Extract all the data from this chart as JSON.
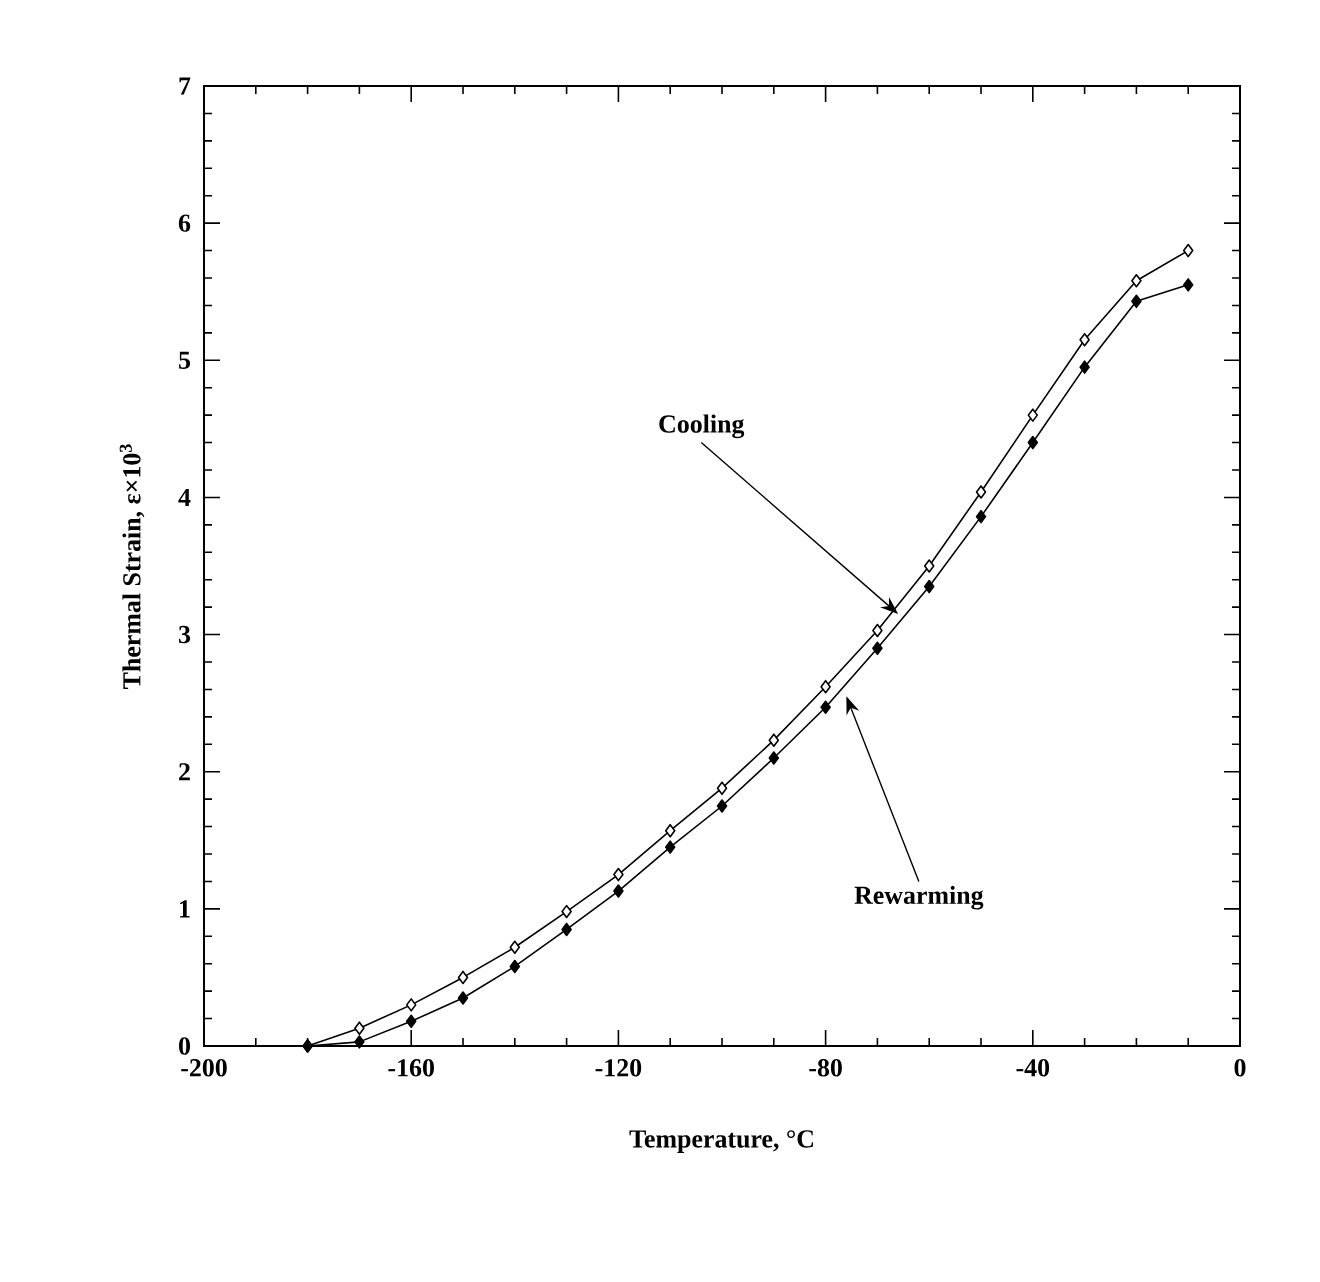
{
  "chart_data": {
    "type": "line",
    "xlabel": "Temperature, °C",
    "ylabel": "Thermal Strain,  ε×10$^{3}$",
    "x": [
      -180,
      -170,
      -160,
      -150,
      -140,
      -130,
      -120,
      -110,
      -100,
      -90,
      -80,
      -70,
      -60,
      -50,
      -40,
      -30,
      -20,
      -10
    ],
    "series": [
      {
        "color": "#000000",
        "values": [
          0,
          0.13,
          0.3,
          0.5,
          0.72,
          0.98,
          1.25,
          1.57,
          1.88,
          2.23,
          2.62,
          3.03,
          3.5,
          4.04,
          4.6,
          5.15,
          5.58,
          5.8
        ]
      },
      {
        "color": "#000000",
        "values": [
          0,
          0.03,
          0.18,
          0.35,
          0.58,
          0.85,
          1.13,
          1.45,
          1.75,
          2.1,
          2.47,
          2.9,
          3.35,
          3.86,
          4.4,
          4.95,
          5.43,
          5.55
        ]
      }
    ],
    "annotations": [
      {
        "text": "Cooling",
        "x": -66,
        "y": 3.15
      },
      {
        "text": "Rewarming",
        "x": -76,
        "y": 2.55
      }
    ],
    "xlim": [
      -200,
      0
    ],
    "ylim": [
      0,
      7
    ],
    "xticks": [
      -200,
      -160,
      -120,
      -80,
      -40,
      0
    ],
    "yticks": [
      0,
      1,
      2,
      3,
      4,
      5,
      6,
      7
    ],
    "marker": "diamond",
    "line_style": "solid"
  }
}
